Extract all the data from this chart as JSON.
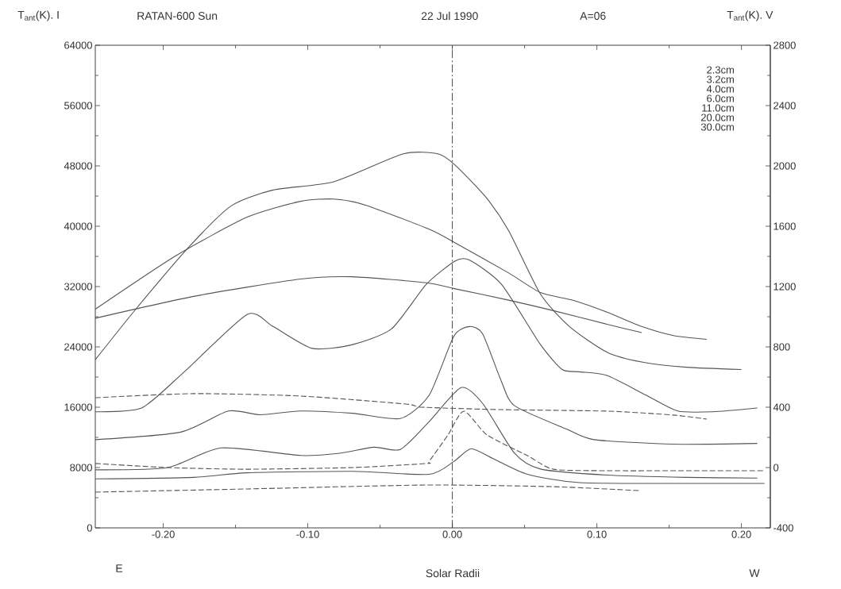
{
  "chart_data": {
    "type": "line",
    "title": "RATAN-600 Sun",
    "ylabel": "T$_{ant}$(K). I",
    "y2label": "T$_{ant}$(K). V",
    "xlabel": "Solar Radii",
    "annotations": [
      "22 Jul 1990",
      "A=06",
      "2.3cm",
      "3.2cm",
      "4.0cm",
      "6.0cm",
      "11.0cm",
      "20.0cm",
      "30.0cm",
      "E",
      "W"
    ],
    "xlim": [
      -0.247,
      0.22
    ],
    "ylim": [
      0,
      64000
    ],
    "y2lim": [
      -400,
      2800
    ],
    "xticks": [
      {
        "value": -0.2,
        "label": "-0.20"
      },
      {
        "value": -0.1,
        "label": "-0.10"
      },
      {
        "value": 0,
        "label": "0.00"
      },
      {
        "value": 0.1,
        "label": "0.10"
      },
      {
        "value": 0.2,
        "label": "0.20"
      }
    ],
    "yticks": [
      0,
      8000,
      16000,
      24000,
      32000,
      40000,
      48000,
      56000,
      64000
    ],
    "y2ticks": [
      -400,
      0,
      400,
      800,
      1200,
      1600,
      2000,
      2400,
      2800
    ],
    "marker": "none",
    "line_style": "solid",
    "ref_lines": [
      {
        "axis": "x",
        "value": 0,
        "line_style": "dashed"
      }
    ],
    "series": [
      {
        "color": "#555555",
        "x": [
          -0.247,
          -0.219,
          -0.182,
          -0.153,
          -0.124,
          -0.082,
          -0.034,
          -0.01,
          0.002,
          0.023,
          0.039,
          0.061,
          0.081,
          0.107,
          0.131,
          0.162,
          0.2
        ],
        "values": [
          22300,
          29000,
          37300,
          42700,
          44800,
          45900,
          49600,
          49600,
          48100,
          43900,
          39400,
          31000,
          26700,
          23300,
          22000,
          21300,
          21000
        ]
      },
      {
        "color": "#555555",
        "x": [
          -0.247,
          -0.192,
          -0.142,
          -0.105,
          -0.082,
          -0.06,
          -0.016,
          0.002,
          0.039,
          0.061,
          0.083,
          0.107,
          0.131,
          0.153,
          0.176
        ],
        "values": [
          29000,
          36000,
          41200,
          43300,
          43600,
          42800,
          39600,
          37800,
          33800,
          31200,
          30200,
          28600,
          26700,
          25500,
          25000
        ]
      },
      {
        "color": "#555555",
        "x": [
          -0.247,
          -0.179,
          -0.105,
          -0.069,
          -0.018,
          0.002,
          0.039,
          0.07,
          0.107,
          0.131
        ],
        "values": [
          27800,
          30700,
          33000,
          33300,
          32500,
          31700,
          30200,
          28800,
          27000,
          25900
        ]
      },
      {
        "color": "#555555",
        "x": [
          -0.247,
          -0.215,
          -0.186,
          -0.142,
          -0.124,
          -0.097,
          -0.069,
          -0.042,
          -0.018,
          0.002,
          0.012,
          0.034,
          0.061,
          0.076,
          0.088,
          0.107,
          0.134,
          0.156,
          0.18,
          0.211
        ],
        "values": [
          15400,
          15900,
          20600,
          28300,
          26700,
          23800,
          24300,
          26400,
          32300,
          35400,
          35500,
          32300,
          24300,
          21000,
          20700,
          20200,
          17600,
          15500,
          15400,
          15900
        ]
      },
      {
        "color": "#555555",
        "x": [
          -0.247,
          -0.188,
          -0.155,
          -0.133,
          -0.105,
          -0.069,
          -0.036,
          -0.016,
          0.001,
          0.012,
          0.021,
          0.034,
          0.043,
          0.079,
          0.098,
          0.153,
          0.211
        ],
        "values": [
          11700,
          12700,
          15500,
          15000,
          15500,
          15200,
          14500,
          17600,
          25400,
          26700,
          25700,
          19400,
          16200,
          13100,
          11700,
          11100,
          11200
        ]
      },
      {
        "color": "#555555",
        "x": [
          -0.247,
          -0.197,
          -0.16,
          -0.105,
          -0.078,
          -0.054,
          -0.036,
          -0.016,
          0.006,
          0.021,
          0.043,
          0.061,
          0.107,
          0.162,
          0.211
        ],
        "values": [
          7700,
          8000,
          10600,
          9600,
          9900,
          10700,
          10400,
          14100,
          18600,
          16500,
          9900,
          7800,
          7000,
          6700,
          6600
        ]
      },
      {
        "color": "#555555",
        "x": [
          -0.247,
          -0.179,
          -0.142,
          -0.069,
          -0.016,
          0.001,
          0.013,
          0.028,
          0.052,
          0.088,
          0.162,
          0.216
        ],
        "values": [
          6500,
          6700,
          7300,
          7500,
          7100,
          8800,
          10500,
          9200,
          7100,
          6000,
          5900,
          5900
        ]
      },
      {
        "color": "#555555",
        "axis": "y2",
        "line_style": "dashed",
        "x": [
          -0.247,
          -0.179,
          -0.105,
          -0.032,
          -0.021,
          0.034,
          0.107,
          0.153,
          0.176
        ],
        "values": [
          463,
          490,
          474,
          421,
          400,
          384,
          374,
          348,
          321
        ]
      },
      {
        "color": "#555555",
        "axis": "y2",
        "line_style": "dashed",
        "x": [
          -0.247,
          -0.197,
          -0.142,
          -0.069,
          -0.018,
          -0.016,
          -0.003,
          0.008,
          0.024,
          0.052,
          0.07,
          0.107,
          0.162,
          0.216
        ],
        "values": [
          27,
          0,
          -11,
          0,
          27,
          42,
          216,
          374,
          216,
          79,
          -11,
          -21,
          -21,
          -21
        ]
      },
      {
        "color": "#555555",
        "axis": "y2",
        "line_style": "dashed",
        "x": [
          -0.247,
          -0.142,
          -0.018,
          0.07,
          0.129
        ],
        "values": [
          -163,
          -142,
          -116,
          -127,
          -153
        ]
      }
    ]
  }
}
